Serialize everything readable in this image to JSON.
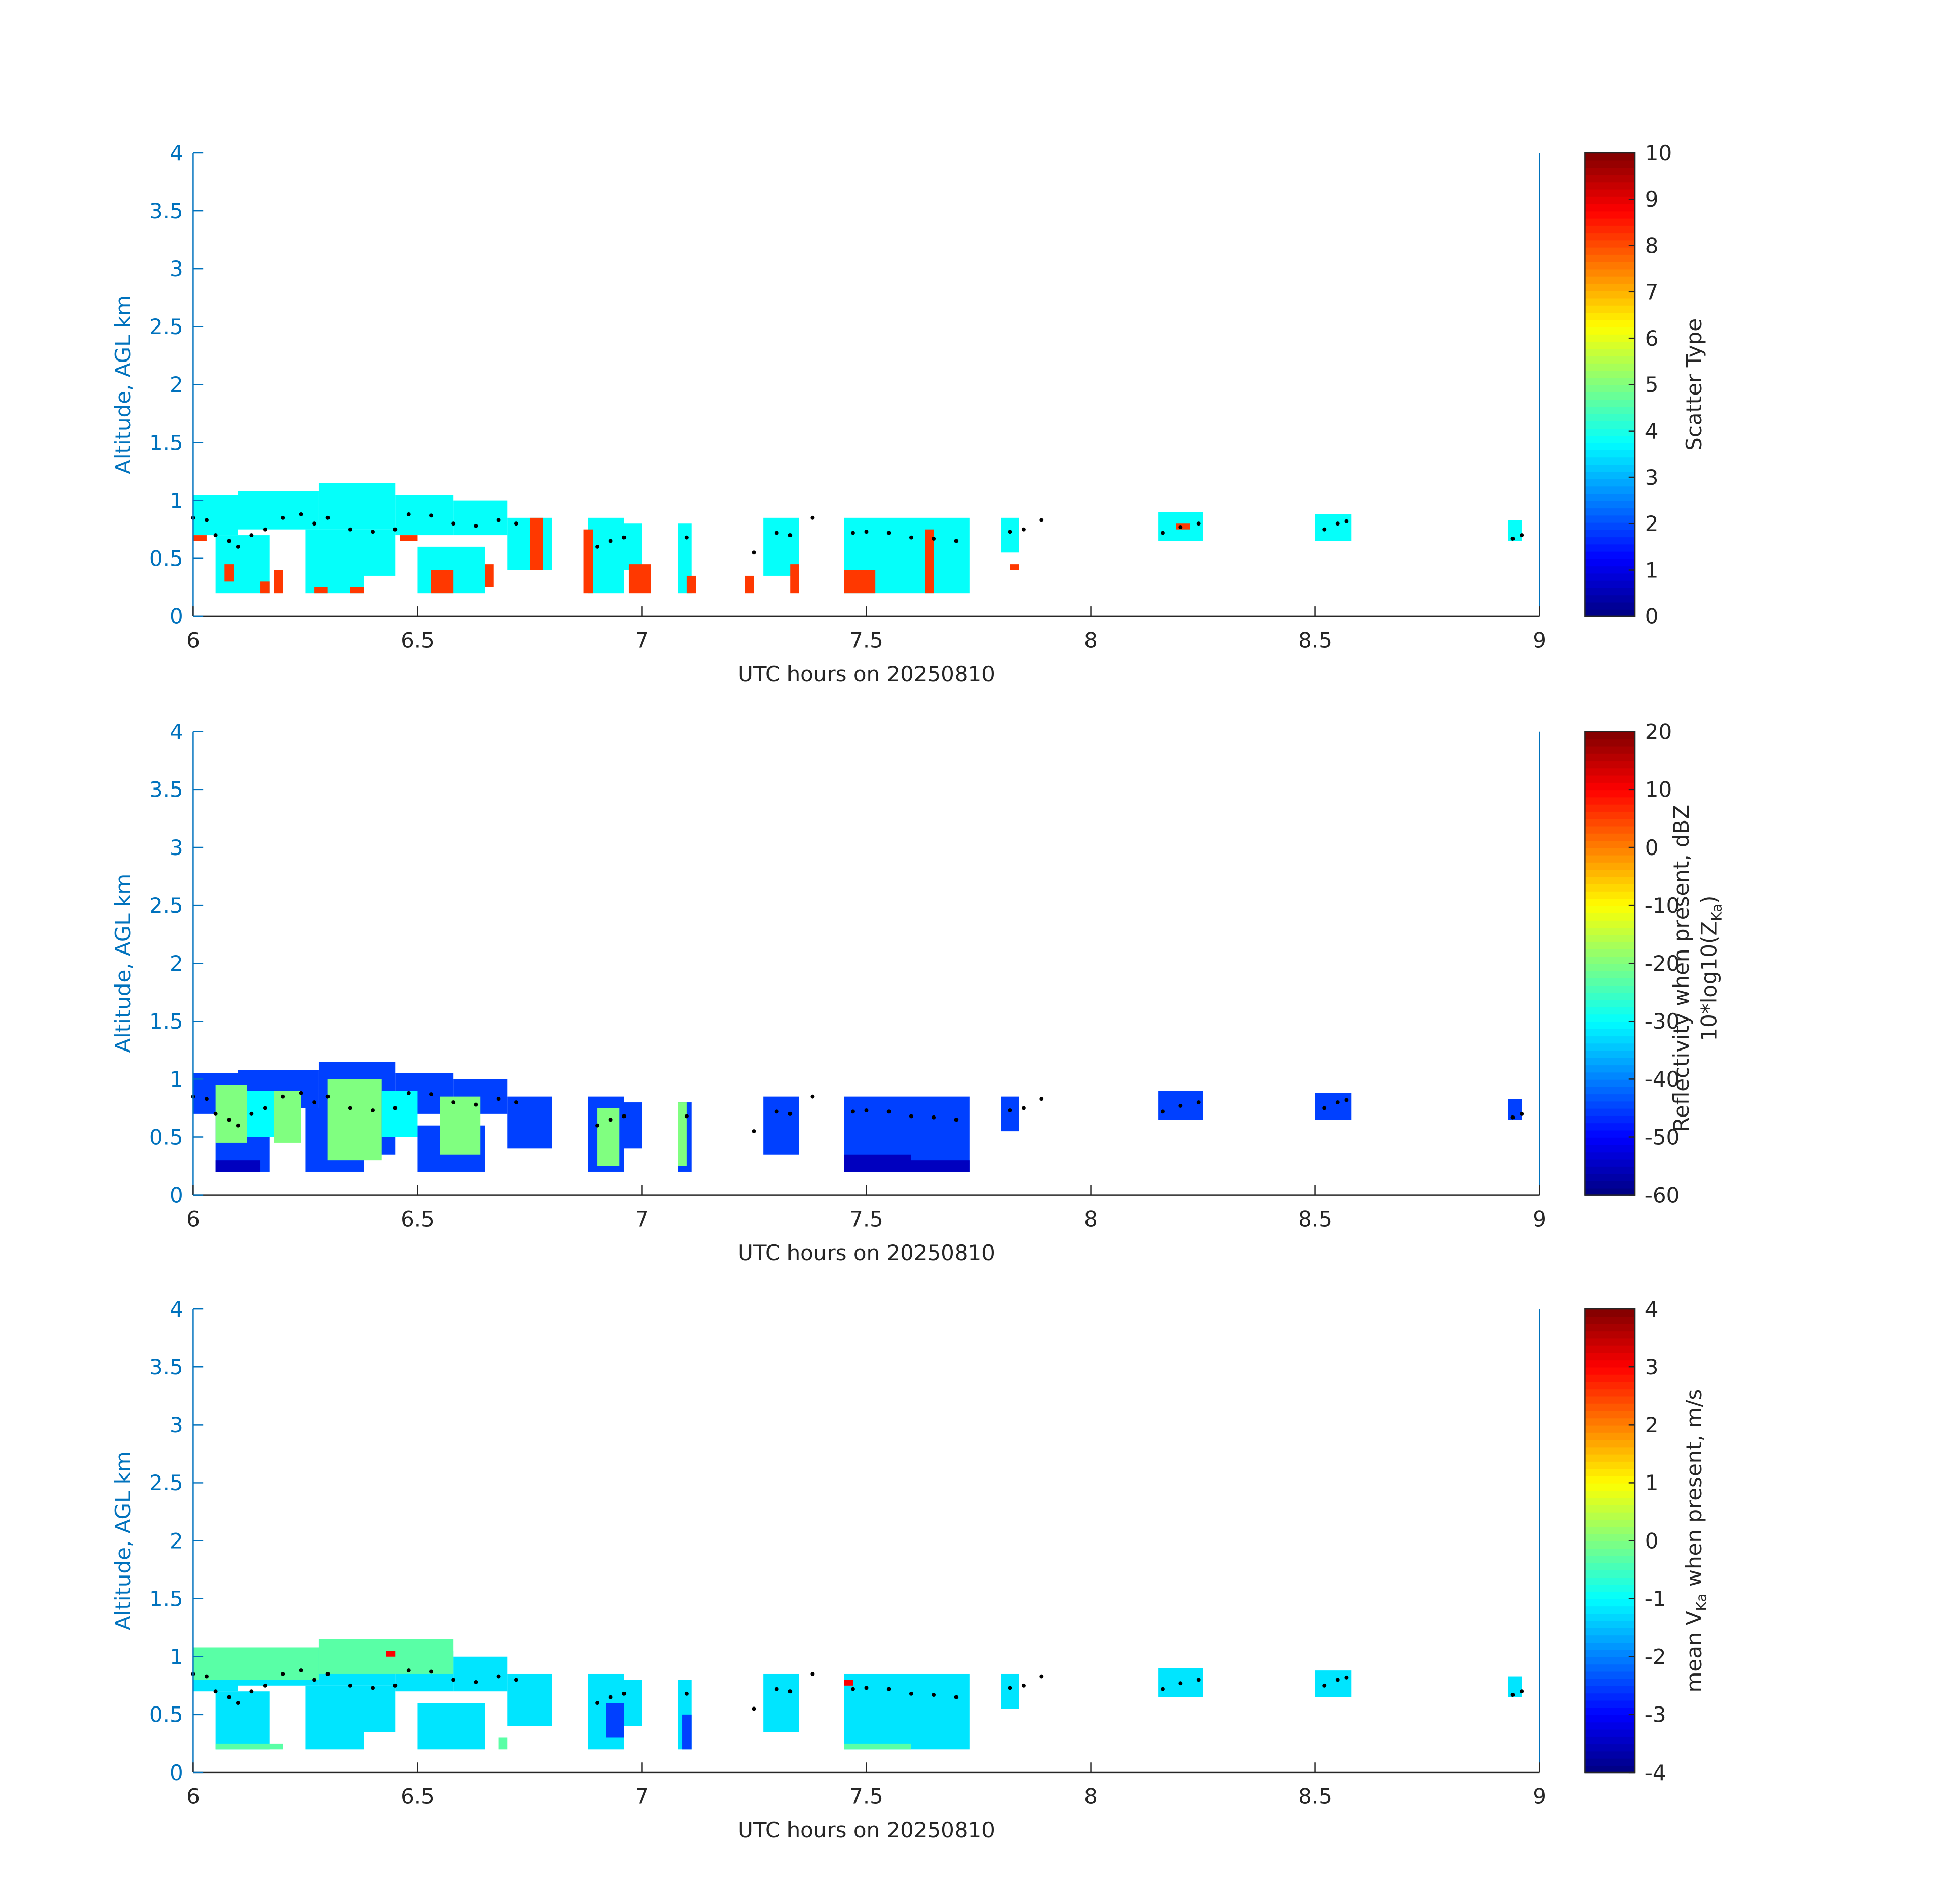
{
  "chart_data": [
    {
      "type": "heatmap",
      "xlabel": "UTC hours on 20250810",
      "ylabel": "Altitude, AGL km",
      "xlim": [
        6,
        9
      ],
      "xticks": [
        6,
        6.5,
        7,
        7.5,
        8,
        8.5,
        9
      ],
      "ylim": [
        0,
        4
      ],
      "yticks": [
        0,
        0.5,
        1,
        1.5,
        2,
        2.5,
        3,
        3.5,
        4
      ],
      "clim": [
        0,
        10
      ],
      "cticks": [
        0,
        1,
        2,
        3,
        4,
        5,
        6,
        7,
        8,
        9,
        10
      ],
      "colorbar_label": [
        "Scatter Type"
      ],
      "cells": {
        "x0": [
          6.0,
          6.1,
          6.28,
          6.45,
          6.58,
          6.7,
          6.05,
          6.25,
          6.38,
          6.5,
          6.88,
          6.96,
          7.08,
          7.27,
          7.45,
          7.6,
          7.8,
          8.15,
          8.5,
          8.93,
          6.0,
          6.07,
          6.15,
          6.18,
          6.27,
          6.35,
          6.46,
          6.53,
          6.65,
          6.75,
          6.87,
          6.97,
          7.1,
          7.23,
          7.33,
          7.45,
          7.63,
          7.82,
          8.19
        ],
        "x1": [
          6.1,
          6.28,
          6.45,
          6.58,
          6.7,
          6.8,
          6.17,
          6.38,
          6.45,
          6.65,
          6.96,
          7.0,
          7.11,
          7.35,
          7.6,
          7.73,
          7.84,
          8.25,
          8.58,
          8.96,
          6.03,
          6.09,
          6.17,
          6.2,
          6.3,
          6.38,
          6.5,
          6.58,
          6.67,
          6.78,
          6.89,
          7.02,
          7.12,
          7.25,
          7.35,
          7.52,
          7.65,
          7.84,
          8.22
        ],
        "y0": [
          0.7,
          0.75,
          0.75,
          0.7,
          0.7,
          0.4,
          0.2,
          0.2,
          0.35,
          0.2,
          0.2,
          0.4,
          0.2,
          0.35,
          0.2,
          0.2,
          0.55,
          0.65,
          0.65,
          0.65,
          0.65,
          0.3,
          0.2,
          0.2,
          0.2,
          0.2,
          0.65,
          0.2,
          0.25,
          0.4,
          0.2,
          0.2,
          0.2,
          0.2,
          0.2,
          0.2,
          0.2,
          0.4,
          0.75
        ],
        "y1": [
          1.05,
          1.08,
          1.15,
          1.05,
          1.0,
          0.85,
          0.7,
          0.75,
          0.75,
          0.6,
          0.85,
          0.8,
          0.8,
          0.85,
          0.85,
          0.85,
          0.85,
          0.9,
          0.88,
          0.83,
          0.7,
          0.45,
          0.3,
          0.4,
          0.25,
          0.25,
          0.7,
          0.4,
          0.45,
          0.85,
          0.75,
          0.45,
          0.35,
          0.35,
          0.45,
          0.4,
          0.75,
          0.45,
          0.8
        ]
      },
      "values": [
        3.8,
        3.8,
        3.8,
        3.8,
        3.8,
        3.8,
        3.8,
        3.8,
        3.8,
        3.8,
        3.8,
        3.8,
        3.8,
        3.8,
        3.8,
        3.8,
        3.8,
        3.8,
        3.8,
        3.8,
        8.2,
        8.2,
        8.2,
        8.2,
        8.2,
        8.2,
        8.2,
        8.2,
        8.2,
        8.2,
        8.2,
        8.2,
        8.2,
        8.2,
        8.2,
        8.2,
        8.2,
        8.2,
        8.2
      ],
      "points": {
        "x": [
          6.0,
          6.03,
          6.05,
          6.08,
          6.1,
          6.13,
          6.16,
          6.2,
          6.24,
          6.27,
          6.3,
          6.35,
          6.4,
          6.45,
          6.48,
          6.53,
          6.58,
          6.63,
          6.68,
          6.72,
          6.9,
          6.93,
          6.96,
          7.1,
          7.25,
          7.3,
          7.33,
          7.38,
          7.47,
          7.5,
          7.55,
          7.6,
          7.65,
          7.7,
          7.82,
          7.85,
          7.89,
          8.16,
          8.2,
          8.24,
          8.52,
          8.55,
          8.57,
          8.94,
          8.96
        ],
        "y": [
          0.85,
          0.83,
          0.7,
          0.65,
          0.6,
          0.7,
          0.75,
          0.85,
          0.88,
          0.8,
          0.85,
          0.75,
          0.73,
          0.75,
          0.88,
          0.87,
          0.8,
          0.78,
          0.83,
          0.8,
          0.6,
          0.65,
          0.68,
          0.68,
          0.55,
          0.72,
          0.7,
          0.85,
          0.72,
          0.73,
          0.72,
          0.68,
          0.67,
          0.65,
          0.73,
          0.75,
          0.83,
          0.72,
          0.77,
          0.8,
          0.75,
          0.8,
          0.82,
          0.67,
          0.7
        ]
      }
    },
    {
      "type": "heatmap",
      "xlabel": "UTC hours on 20250810",
      "ylabel": "Altitude, AGL km",
      "xlim": [
        6,
        9
      ],
      "xticks": [
        6,
        6.5,
        7,
        7.5,
        8,
        8.5,
        9
      ],
      "ylim": [
        0,
        4
      ],
      "yticks": [
        0,
        0.5,
        1,
        1.5,
        2,
        2.5,
        3,
        3.5,
        4
      ],
      "clim": [
        -60,
        20
      ],
      "cticks": [
        -60,
        -50,
        -40,
        -30,
        -20,
        -10,
        0,
        10,
        20
      ],
      "colorbar_label": [
        "Reflectivity when present, dBZ",
        "10*log10(Z",
        "Ka",
        ")"
      ],
      "cells": {
        "x0": [
          6.0,
          6.1,
          6.28,
          6.45,
          6.58,
          6.7,
          6.05,
          6.25,
          6.38,
          6.5,
          6.88,
          6.96,
          7.08,
          7.27,
          7.45,
          7.6,
          7.8,
          8.15,
          8.5,
          8.93,
          6.05,
          6.18,
          6.3,
          6.55,
          6.9,
          7.08,
          6.12,
          6.42,
          6.05,
          7.45,
          7.6
        ],
        "x1": [
          6.1,
          6.28,
          6.45,
          6.58,
          6.7,
          6.8,
          6.17,
          6.38,
          6.45,
          6.65,
          6.96,
          7.0,
          7.11,
          7.35,
          7.6,
          7.73,
          7.84,
          8.25,
          8.58,
          8.96,
          6.12,
          6.24,
          6.42,
          6.64,
          6.95,
          7.1,
          6.18,
          6.5,
          6.15,
          7.6,
          7.73
        ],
        "y0": [
          0.7,
          0.75,
          0.75,
          0.7,
          0.7,
          0.4,
          0.2,
          0.2,
          0.35,
          0.2,
          0.2,
          0.4,
          0.2,
          0.35,
          0.2,
          0.2,
          0.55,
          0.65,
          0.65,
          0.65,
          0.45,
          0.45,
          0.3,
          0.35,
          0.25,
          0.25,
          0.5,
          0.5,
          0.2,
          0.2,
          0.2
        ],
        "y1": [
          1.05,
          1.08,
          1.15,
          1.05,
          1.0,
          0.85,
          0.7,
          0.75,
          0.75,
          0.6,
          0.85,
          0.8,
          0.8,
          0.85,
          0.85,
          0.85,
          0.85,
          0.9,
          0.88,
          0.83,
          0.95,
          0.9,
          1.0,
          0.85,
          0.75,
          0.8,
          0.9,
          0.9,
          0.3,
          0.35,
          0.3
        ]
      },
      "values": [
        -45,
        -45,
        -45,
        -45,
        -45,
        -45,
        -45,
        -45,
        -45,
        -45,
        -45,
        -45,
        -45,
        -45,
        -45,
        -45,
        -45,
        -45,
        -45,
        -45,
        -20,
        -20,
        -20,
        -20,
        -20,
        -20,
        -30,
        -30,
        -55,
        -55,
        -55
      ],
      "points": {
        "x": [
          6.0,
          6.03,
          6.05,
          6.08,
          6.1,
          6.13,
          6.16,
          6.2,
          6.24,
          6.27,
          6.3,
          6.35,
          6.4,
          6.45,
          6.48,
          6.53,
          6.58,
          6.63,
          6.68,
          6.72,
          6.9,
          6.93,
          6.96,
          7.1,
          7.25,
          7.3,
          7.33,
          7.38,
          7.47,
          7.5,
          7.55,
          7.6,
          7.65,
          7.7,
          7.82,
          7.85,
          7.89,
          8.16,
          8.2,
          8.24,
          8.52,
          8.55,
          8.57,
          8.94,
          8.96
        ],
        "y": [
          0.85,
          0.83,
          0.7,
          0.65,
          0.6,
          0.7,
          0.75,
          0.85,
          0.88,
          0.8,
          0.85,
          0.75,
          0.73,
          0.75,
          0.88,
          0.87,
          0.8,
          0.78,
          0.83,
          0.8,
          0.6,
          0.65,
          0.68,
          0.68,
          0.55,
          0.72,
          0.7,
          0.85,
          0.72,
          0.73,
          0.72,
          0.68,
          0.67,
          0.65,
          0.73,
          0.75,
          0.83,
          0.72,
          0.77,
          0.8,
          0.75,
          0.8,
          0.82,
          0.67,
          0.7
        ]
      }
    },
    {
      "type": "heatmap",
      "xlabel": "UTC hours on 20250810",
      "ylabel": "Altitude, AGL km",
      "xlim": [
        6,
        9
      ],
      "xticks": [
        6,
        6.5,
        7,
        7.5,
        8,
        8.5,
        9
      ],
      "ylim": [
        0,
        4
      ],
      "yticks": [
        0,
        0.5,
        1,
        1.5,
        2,
        2.5,
        3,
        3.5,
        4
      ],
      "clim": [
        -4,
        4
      ],
      "cticks": [
        -4,
        -3,
        -2,
        -1,
        0,
        1,
        2,
        3,
        4
      ],
      "colorbar_label": [
        "mean V",
        "Ka",
        " when present, m/s"
      ],
      "cells": {
        "x0": [
          6.0,
          6.1,
          6.28,
          6.45,
          6.58,
          6.7,
          6.05,
          6.25,
          6.38,
          6.5,
          6.88,
          6.96,
          7.08,
          7.27,
          7.45,
          7.6,
          7.8,
          8.15,
          8.5,
          8.93,
          6.0,
          6.28,
          6.05,
          7.45,
          6.68,
          6.92,
          7.09,
          6.43,
          7.45
        ],
        "x1": [
          6.1,
          6.28,
          6.45,
          6.58,
          6.7,
          6.8,
          6.17,
          6.38,
          6.45,
          6.65,
          6.96,
          7.0,
          7.11,
          7.35,
          7.6,
          7.73,
          7.84,
          8.25,
          8.58,
          8.96,
          6.28,
          6.58,
          6.2,
          7.6,
          6.7,
          6.96,
          7.11,
          6.45,
          7.47
        ],
        "y0": [
          0.7,
          0.75,
          0.75,
          0.7,
          0.7,
          0.4,
          0.2,
          0.2,
          0.35,
          0.2,
          0.2,
          0.4,
          0.2,
          0.35,
          0.2,
          0.2,
          0.55,
          0.65,
          0.65,
          0.65,
          0.8,
          0.85,
          0.2,
          0.2,
          0.2,
          0.3,
          0.2,
          1.0,
          0.75
        ],
        "y1": [
          1.05,
          1.08,
          1.15,
          1.05,
          1.0,
          0.85,
          0.7,
          0.75,
          0.75,
          0.6,
          0.85,
          0.8,
          0.8,
          0.85,
          0.85,
          0.85,
          0.85,
          0.9,
          0.88,
          0.83,
          1.08,
          1.15,
          0.25,
          0.25,
          0.3,
          0.6,
          0.5,
          1.05,
          0.8
        ]
      },
      "values": [
        -1.2,
        -1.2,
        -1.2,
        -1.2,
        -1.2,
        -1.2,
        -1.2,
        -1.2,
        -1.2,
        -1.2,
        -1.2,
        -1.2,
        -1.2,
        -1.2,
        -1.2,
        -1.2,
        -1.2,
        -1.2,
        -1.2,
        -1.2,
        -0.3,
        -0.3,
        -0.3,
        -0.3,
        -0.3,
        -2.5,
        -2.5,
        3,
        3
      ],
      "points": {
        "x": [
          6.0,
          6.03,
          6.05,
          6.08,
          6.1,
          6.13,
          6.16,
          6.2,
          6.24,
          6.27,
          6.3,
          6.35,
          6.4,
          6.45,
          6.48,
          6.53,
          6.58,
          6.63,
          6.68,
          6.72,
          6.9,
          6.93,
          6.96,
          7.1,
          7.25,
          7.3,
          7.33,
          7.38,
          7.47,
          7.5,
          7.55,
          7.6,
          7.65,
          7.7,
          7.82,
          7.85,
          7.89,
          8.16,
          8.2,
          8.24,
          8.52,
          8.55,
          8.57,
          8.94,
          8.96
        ],
        "y": [
          0.85,
          0.83,
          0.7,
          0.65,
          0.6,
          0.7,
          0.75,
          0.85,
          0.88,
          0.8,
          0.85,
          0.75,
          0.73,
          0.75,
          0.88,
          0.87,
          0.8,
          0.78,
          0.83,
          0.8,
          0.6,
          0.65,
          0.68,
          0.68,
          0.55,
          0.72,
          0.7,
          0.85,
          0.72,
          0.73,
          0.72,
          0.68,
          0.67,
          0.65,
          0.73,
          0.75,
          0.83,
          0.72,
          0.77,
          0.8,
          0.75,
          0.8,
          0.82,
          0.67,
          0.7
        ]
      }
    }
  ]
}
